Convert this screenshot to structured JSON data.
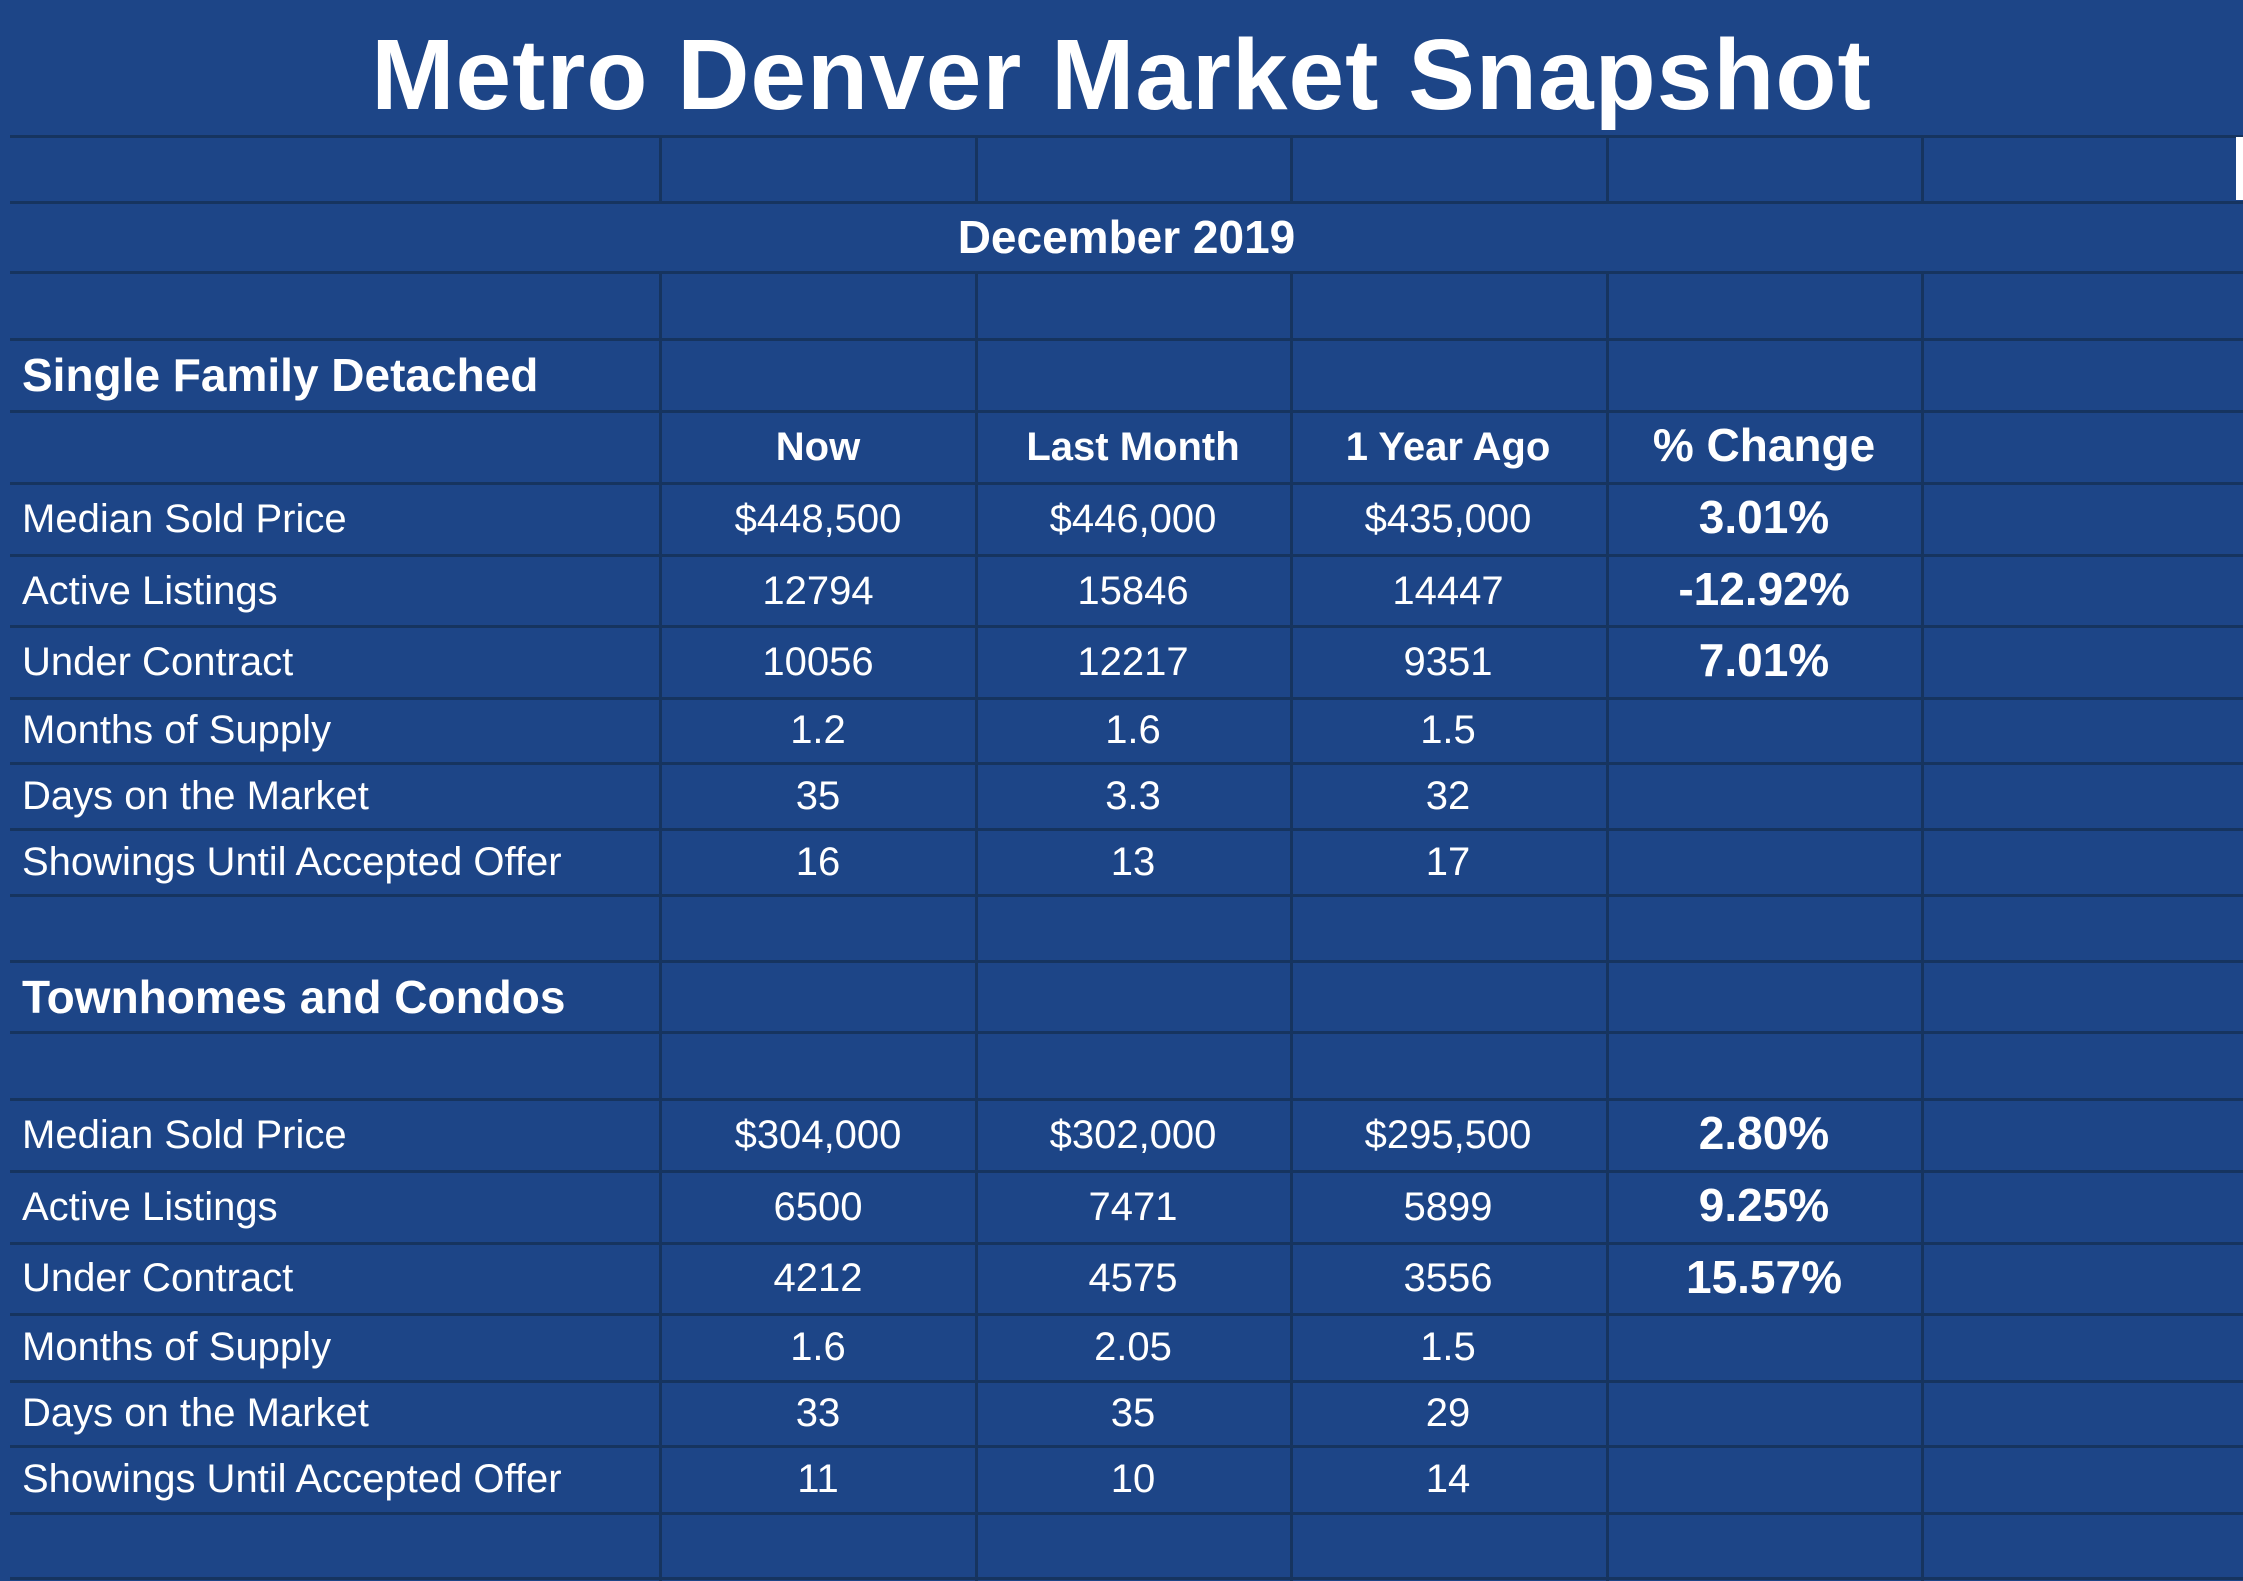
{
  "title": "Metro Denver Market Snapshot",
  "period": "December 2019",
  "columns": {
    "now": "Now",
    "last_month": "Last Month",
    "year_ago": "1 Year Ago",
    "pct_change": "% Change"
  },
  "sections": [
    {
      "name": "Single Family Detached",
      "rows": [
        {
          "label": "Median Sold Price",
          "now": "$448,500",
          "last_month": "$446,000",
          "year_ago": "$435,000",
          "pct_change": "3.01%"
        },
        {
          "label": "Active Listings",
          "now": "12794",
          "last_month": "15846",
          "year_ago": "14447",
          "pct_change": "-12.92%"
        },
        {
          "label": "Under Contract",
          "now": "10056",
          "last_month": "12217",
          "year_ago": "9351",
          "pct_change": "7.01%"
        },
        {
          "label": "Months of Supply",
          "now": "1.2",
          "last_month": "1.6",
          "year_ago": "1.5",
          "pct_change": ""
        },
        {
          "label": "Days on the Market",
          "now": "35",
          "last_month": "3.3",
          "year_ago": "32",
          "pct_change": ""
        },
        {
          "label": "Showings Until Accepted Offer",
          "now": "16",
          "last_month": "13",
          "year_ago": "17",
          "pct_change": ""
        }
      ]
    },
    {
      "name": "Townhomes and Condos",
      "rows": [
        {
          "label": "Median Sold Price",
          "now": "$304,000",
          "last_month": "$302,000",
          "year_ago": "$295,500",
          "pct_change": "2.80%"
        },
        {
          "label": "Active Listings",
          "now": "6500",
          "last_month": "7471",
          "year_ago": "5899",
          "pct_change": "9.25%"
        },
        {
          "label": "Under Contract",
          "now": "4212",
          "last_month": "4575",
          "year_ago": "3556",
          "pct_change": "15.57%"
        },
        {
          "label": "Months of Supply",
          "now": "1.6",
          "last_month": "2.05",
          "year_ago": "1.5",
          "pct_change": ""
        },
        {
          "label": "Days on the Market",
          "now": "33",
          "last_month": "35",
          "year_ago": "29",
          "pct_change": ""
        },
        {
          "label": "Showings Until Accepted Offer",
          "now": "11",
          "last_month": "10",
          "year_ago": "14",
          "pct_change": ""
        }
      ]
    }
  ],
  "colors": {
    "background": "#1d4587",
    "gridline": "#16345f",
    "text": "#ffffff"
  }
}
